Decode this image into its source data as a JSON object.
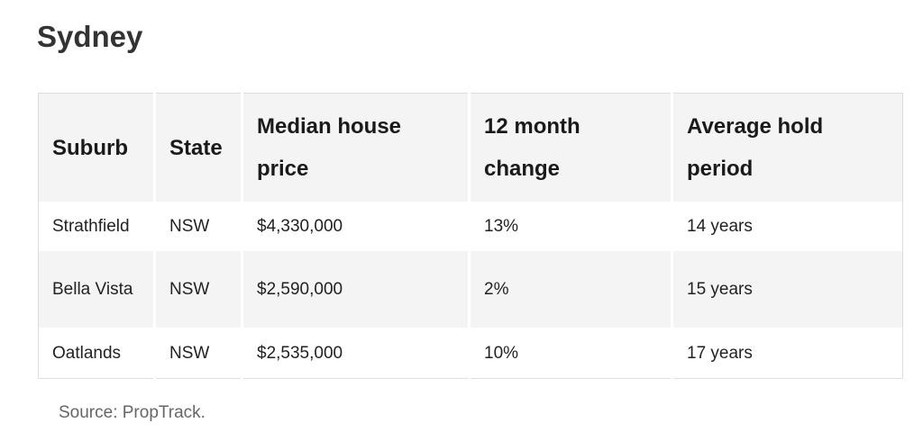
{
  "title": "Sydney",
  "table": {
    "header": [
      "Suburb",
      "State",
      "Median house price",
      "12 month change",
      "Average hold period"
    ],
    "rows": [
      [
        "Strathfield",
        "NSW",
        "$4,330,000",
        "13%",
        "14 years"
      ],
      [
        "Bella Vista",
        "NSW",
        "$2,590,000",
        "2%",
        "15 years"
      ],
      [
        "Oatlands",
        "NSW",
        "$2,535,000",
        "10%",
        "17 years"
      ]
    ]
  },
  "source": "Source: PropTrack."
}
